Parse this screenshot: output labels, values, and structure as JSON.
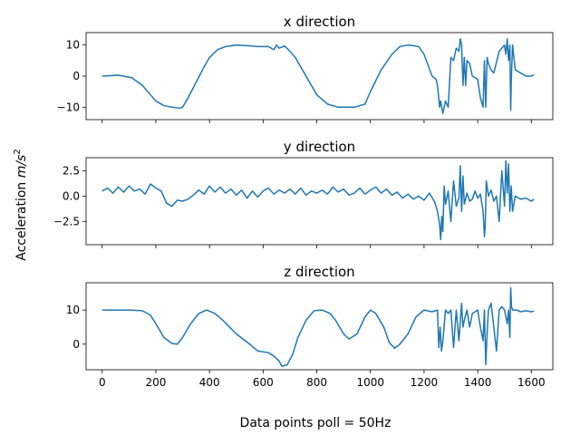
{
  "figure": {
    "ylabel": "Acceleration m/s²",
    "xlabel": "Data points poll = 50Hz",
    "line_color": "#1f77b4"
  },
  "chart_data": [
    {
      "type": "line",
      "title": "x direction",
      "xlim": [
        -60,
        1680
      ],
      "ylim": [
        -14,
        14
      ],
      "yticks": [
        -10,
        0,
        10
      ],
      "xticks": [
        0,
        200,
        400,
        600,
        800,
        1000,
        1200,
        1400,
        1600
      ],
      "show_xtick_labels": false,
      "series": [
        {
          "x": [
            0,
            60,
            110,
            150,
            180,
            200,
            230,
            260,
            290,
            300,
            320,
            350,
            380,
            400,
            430,
            460,
            500,
            540,
            580,
            620,
            640,
            650,
            660,
            680,
            700,
            720,
            740,
            760,
            780,
            800,
            840,
            880,
            900,
            940,
            980,
            1000,
            1040,
            1080,
            1110,
            1140,
            1160,
            1180,
            1200,
            1230,
            1245,
            1250,
            1258,
            1262,
            1270,
            1280,
            1290,
            1295,
            1300,
            1310,
            1320,
            1330,
            1335,
            1340,
            1345,
            1350,
            1355,
            1360,
            1370,
            1380,
            1400,
            1410,
            1420,
            1425,
            1430,
            1435,
            1440,
            1450,
            1460,
            1480,
            1500,
            1505,
            1510,
            1515,
            1520,
            1523,
            1525,
            1530,
            1540,
            1560,
            1580,
            1600,
            1610
          ],
          "y": [
            0,
            0.3,
            -0.5,
            -3,
            -6,
            -8,
            -9.5,
            -10,
            -10.3,
            -10,
            -7,
            -2,
            3,
            6,
            8.5,
            9.5,
            10,
            9.8,
            9.5,
            9.5,
            8.5,
            10,
            9,
            9.7,
            8,
            6,
            3,
            0,
            -3,
            -6,
            -9,
            -10,
            -10,
            -10,
            -9,
            -5,
            2,
            7,
            9.5,
            10,
            9.8,
            9.5,
            7,
            0,
            -1,
            -3,
            -10,
            -8,
            -12,
            -8,
            -10,
            -2,
            6,
            5,
            9,
            8,
            12,
            10,
            -3,
            6,
            -3,
            5,
            4,
            0,
            -1,
            -7,
            -10,
            5,
            -10,
            6,
            4,
            2,
            1,
            8,
            10,
            7,
            12,
            5,
            10,
            -11,
            -2,
            10,
            2,
            1,
            0,
            0,
            0.5
          ]
        }
      ]
    },
    {
      "type": "line",
      "title": "y direction",
      "xlim": [
        -60,
        1680
      ],
      "ylim": [
        -4.8,
        3.8
      ],
      "yticks": [
        -2.5,
        0.0,
        2.5
      ],
      "ytick_labels": [
        "−2.5",
        "0.0",
        "2.5"
      ],
      "xticks": [
        0,
        200,
        400,
        600,
        800,
        1000,
        1200,
        1400,
        1600
      ],
      "show_xtick_labels": false,
      "series": [
        {
          "x": [
            0,
            20,
            40,
            60,
            80,
            100,
            120,
            140,
            160,
            180,
            200,
            220,
            240,
            260,
            280,
            300,
            320,
            340,
            360,
            380,
            400,
            420,
            440,
            460,
            480,
            500,
            520,
            540,
            560,
            580,
            600,
            620,
            640,
            660,
            680,
            700,
            720,
            740,
            760,
            780,
            800,
            820,
            840,
            860,
            880,
            900,
            920,
            940,
            960,
            980,
            1000,
            1020,
            1040,
            1060,
            1080,
            1100,
            1120,
            1140,
            1160,
            1180,
            1200,
            1220,
            1240,
            1250,
            1258,
            1262,
            1266,
            1270,
            1275,
            1280,
            1290,
            1300,
            1310,
            1320,
            1330,
            1335,
            1340,
            1345,
            1350,
            1360,
            1370,
            1380,
            1390,
            1400,
            1410,
            1420,
            1425,
            1428,
            1432,
            1440,
            1450,
            1460,
            1470,
            1480,
            1490,
            1500,
            1505,
            1510,
            1515,
            1520,
            1525,
            1530,
            1540,
            1560,
            1580,
            1600,
            1610
          ],
          "y": [
            0.5,
            0.8,
            0.3,
            0.9,
            0.4,
            1.0,
            0.5,
            0.7,
            0.2,
            1.2,
            0.8,
            0.5,
            -0.7,
            -1.0,
            -0.4,
            -0.5,
            -0.3,
            0.1,
            0.6,
            0.2,
            1.0,
            0.4,
            0.9,
            0.3,
            0.7,
            0.1,
            0.6,
            -0.2,
            0.5,
            -0.1,
            0.5,
            0.8,
            0.2,
            0.6,
            0.3,
            0.7,
            0.2,
            0.8,
            0.1,
            0.5,
            0.3,
            0.6,
            0.2,
            0.9,
            0.4,
            0.7,
            0.1,
            0.3,
            0.8,
            0.2,
            0.6,
            0.9,
            0.3,
            0.7,
            0.1,
            0.4,
            -0.2,
            0.2,
            -0.3,
            0.0,
            -0.4,
            0.3,
            -0.6,
            -1.5,
            -2.8,
            -4.3,
            -2.0,
            -3.5,
            1.0,
            -0.8,
            0.5,
            -2.5,
            1.5,
            -1.0,
            -0.2,
            3.0,
            -1.5,
            2.0,
            -0.8,
            0.3,
            -0.5,
            -0.3,
            0.5,
            -0.2,
            0.2,
            -1.5,
            -4.0,
            -3.0,
            1.5,
            0.0,
            0.6,
            -0.5,
            0.0,
            -2.5,
            2.5,
            -1.0,
            3.5,
            0.3,
            3.2,
            -1.5,
            1.0,
            -1.5,
            0.0,
            -0.3,
            -0.2,
            -0.5,
            -0.3
          ]
        }
      ]
    },
    {
      "type": "line",
      "title": "z direction",
      "xlim": [
        -60,
        1680
      ],
      "ylim": [
        -7.5,
        18
      ],
      "yticks": [
        0,
        10
      ],
      "xticks": [
        0,
        200,
        400,
        600,
        800,
        1000,
        1200,
        1400,
        1600
      ],
      "show_xtick_labels": true,
      "series": [
        {
          "x": [
            0,
            50,
            100,
            150,
            180,
            200,
            230,
            260,
            280,
            300,
            330,
            360,
            390,
            420,
            450,
            500,
            550,
            580,
            620,
            640,
            660,
            670,
            690,
            710,
            730,
            760,
            790,
            820,
            850,
            870,
            900,
            920,
            950,
            980,
            1000,
            1020,
            1050,
            1070,
            1090,
            1110,
            1140,
            1170,
            1200,
            1230,
            1250,
            1255,
            1260,
            1265,
            1270,
            1280,
            1290,
            1300,
            1310,
            1320,
            1330,
            1340,
            1345,
            1350,
            1360,
            1370,
            1380,
            1390,
            1400,
            1410,
            1420,
            1425,
            1430,
            1435,
            1440,
            1450,
            1460,
            1470,
            1480,
            1490,
            1500,
            1510,
            1515,
            1520,
            1523,
            1526,
            1530,
            1545,
            1560,
            1580,
            1600,
            1610
          ],
          "y": [
            10,
            10,
            10,
            9.8,
            8.5,
            6,
            2,
            0.2,
            0,
            2,
            6,
            9,
            10,
            9,
            7,
            3,
            0,
            -2,
            -2.5,
            -3.5,
            -5,
            -6.5,
            -6,
            -3,
            2,
            7,
            9.8,
            10,
            9,
            7,
            3,
            1.5,
            3,
            8,
            10,
            9,
            5,
            0.5,
            -1.2,
            0,
            3,
            8,
            10,
            9.5,
            10,
            -1,
            5,
            -2,
            1,
            10,
            9,
            10,
            -1,
            10,
            1,
            12,
            5,
            7,
            10,
            5,
            9,
            9.5,
            10,
            5,
            1,
            10,
            -6,
            3,
            10,
            12,
            5,
            -2,
            10,
            11,
            10,
            6,
            10,
            2,
            16.5,
            11,
            10,
            10,
            9.5,
            9.8,
            9.5,
            9.7
          ]
        }
      ]
    }
  ]
}
